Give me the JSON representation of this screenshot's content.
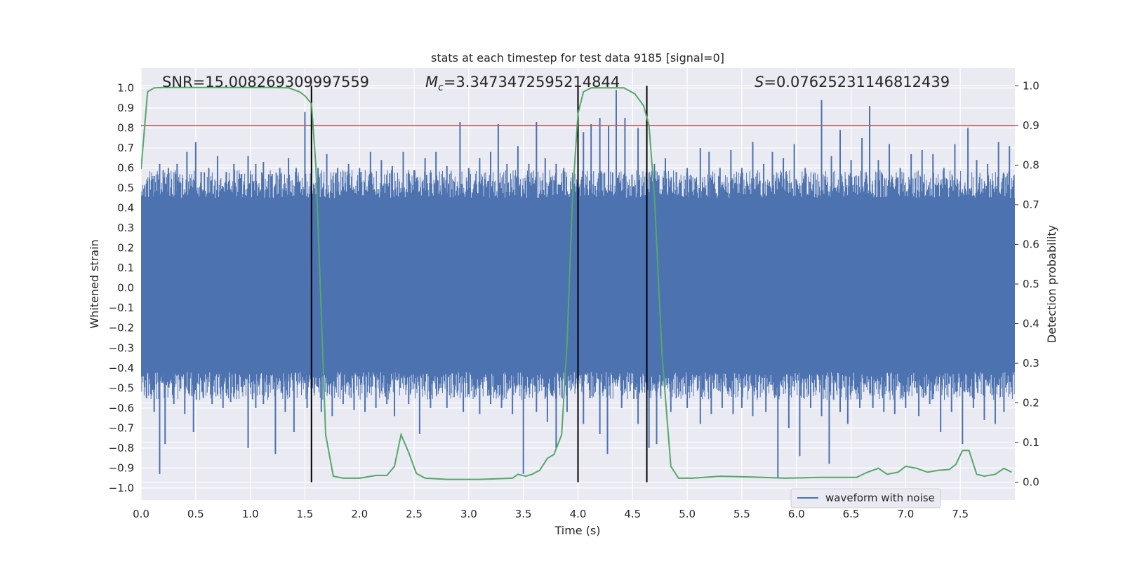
{
  "chart_data": {
    "type": "line",
    "title": "stats at each timestep for test data 9185 [signal=0]",
    "xlabel": "Time (s)",
    "ylabel": "Whitened strain",
    "y2label": "Detection probability",
    "xlim": [
      0.0,
      8.0
    ],
    "ylim": [
      -1.06,
      1.1
    ],
    "y2lim": [
      -0.045,
      1.045
    ],
    "x_ticks": [
      0.0,
      0.5,
      1.0,
      1.5,
      2.0,
      2.5,
      3.0,
      3.5,
      4.0,
      4.5,
      5.0,
      5.5,
      6.0,
      6.5,
      7.0,
      7.5
    ],
    "y_ticks": [
      1.0,
      0.9,
      0.8,
      0.7,
      0.6,
      0.5,
      0.4,
      0.3,
      0.2,
      0.1,
      0.0,
      -0.1,
      -0.2,
      -0.3,
      -0.4,
      -0.5,
      -0.6,
      -0.7,
      -0.8,
      -0.9,
      -1.0
    ],
    "y2_ticks": [
      1.0,
      0.9,
      0.8,
      0.7,
      0.6,
      0.5,
      0.4,
      0.3,
      0.2,
      0.1,
      0.0
    ],
    "grid": true,
    "legend_position": "lower-right",
    "annotations": {
      "snr": "SNR=15.008269309997559",
      "mc_symbol": "M",
      "mc_subscript": "c",
      "mc_value": "=3.3473472595214844",
      "s_symbol": "S",
      "s_value": "=0.07625231146812439"
    },
    "threshold": {
      "y2": 0.9,
      "color": "#c44e52"
    },
    "vertical_lines": [
      1.56,
      4.0,
      4.63
    ],
    "series": [
      {
        "name": "waveform with noise",
        "axis": "left",
        "color": "#4c72b0",
        "envelope_upper": 0.45,
        "envelope_lower": -0.42,
        "spikes_up": [
          [
            0.05,
            0.52
          ],
          [
            0.12,
            0.56
          ],
          [
            0.17,
            0.62
          ],
          [
            0.25,
            0.6
          ],
          [
            0.33,
            0.62
          ],
          [
            0.42,
            0.68
          ],
          [
            0.5,
            0.73
          ],
          [
            0.55,
            0.58
          ],
          [
            0.62,
            0.6
          ],
          [
            0.7,
            0.66
          ],
          [
            0.78,
            0.58
          ],
          [
            0.85,
            0.62
          ],
          [
            0.92,
            0.57
          ],
          [
            0.98,
            0.66
          ],
          [
            1.05,
            0.62
          ],
          [
            1.12,
            0.63
          ],
          [
            1.2,
            0.57
          ],
          [
            1.27,
            0.6
          ],
          [
            1.35,
            0.65
          ],
          [
            1.42,
            0.6
          ],
          [
            1.5,
            0.88
          ],
          [
            1.62,
            0.6
          ],
          [
            1.7,
            0.67
          ],
          [
            1.8,
            0.6
          ],
          [
            1.9,
            0.62
          ],
          [
            2.0,
            0.6
          ],
          [
            2.1,
            0.68
          ],
          [
            2.2,
            0.64
          ],
          [
            2.3,
            0.61
          ],
          [
            2.4,
            0.68
          ],
          [
            2.5,
            0.59
          ],
          [
            2.6,
            0.65
          ],
          [
            2.7,
            0.68
          ],
          [
            2.8,
            0.61
          ],
          [
            2.92,
            0.83
          ],
          [
            3.0,
            0.6
          ],
          [
            3.1,
            0.65
          ],
          [
            3.2,
            0.68
          ],
          [
            3.27,
            0.82
          ],
          [
            3.35,
            0.62
          ],
          [
            3.45,
            0.71
          ],
          [
            3.55,
            0.62
          ],
          [
            3.62,
            0.83
          ],
          [
            3.7,
            0.65
          ],
          [
            3.8,
            0.62
          ],
          [
            3.87,
            0.6
          ],
          [
            4.05,
            0.78
          ],
          [
            4.12,
            0.82
          ],
          [
            4.2,
            0.85
          ],
          [
            4.28,
            0.81
          ],
          [
            4.35,
            0.99
          ],
          [
            4.43,
            0.85
          ],
          [
            4.55,
            0.8
          ],
          [
            4.7,
            0.62
          ],
          [
            4.8,
            0.65
          ],
          [
            4.9,
            0.58
          ],
          [
            5.0,
            0.6
          ],
          [
            5.12,
            0.7
          ],
          [
            5.2,
            0.68
          ],
          [
            5.3,
            0.6
          ],
          [
            5.4,
            0.69
          ],
          [
            5.5,
            0.6
          ],
          [
            5.6,
            0.73
          ],
          [
            5.7,
            0.62
          ],
          [
            5.78,
            0.68
          ],
          [
            5.88,
            0.65
          ],
          [
            5.98,
            0.72
          ],
          [
            6.08,
            0.6
          ],
          [
            6.23,
            0.94
          ],
          [
            6.32,
            0.66
          ],
          [
            6.4,
            0.79
          ],
          [
            6.5,
            0.64
          ],
          [
            6.6,
            0.75
          ],
          [
            6.67,
            0.91
          ],
          [
            6.75,
            0.64
          ],
          [
            6.85,
            0.72
          ],
          [
            6.95,
            0.6
          ],
          [
            7.05,
            0.67
          ],
          [
            7.15,
            0.69
          ],
          [
            7.25,
            0.67
          ],
          [
            7.35,
            0.6
          ],
          [
            7.45,
            0.72
          ],
          [
            7.57,
            0.8
          ],
          [
            7.65,
            0.64
          ],
          [
            7.75,
            0.62
          ],
          [
            7.85,
            0.73
          ],
          [
            7.95,
            0.71
          ]
        ],
        "spikes_down": [
          [
            0.05,
            -0.55
          ],
          [
            0.12,
            -0.62
          ],
          [
            0.17,
            -0.93
          ],
          [
            0.22,
            -0.78
          ],
          [
            0.3,
            -0.58
          ],
          [
            0.4,
            -0.63
          ],
          [
            0.48,
            -0.72
          ],
          [
            0.57,
            -0.55
          ],
          [
            0.65,
            -0.58
          ],
          [
            0.75,
            -0.6
          ],
          [
            0.82,
            -0.57
          ],
          [
            0.98,
            -0.8
          ],
          [
            1.05,
            -0.6
          ],
          [
            1.12,
            -0.58
          ],
          [
            1.23,
            -0.83
          ],
          [
            1.32,
            -0.62
          ],
          [
            1.4,
            -0.72
          ],
          [
            1.52,
            -0.6
          ],
          [
            1.65,
            -0.62
          ],
          [
            1.75,
            -0.64
          ],
          [
            1.85,
            -0.58
          ],
          [
            1.95,
            -0.61
          ],
          [
            2.05,
            -0.62
          ],
          [
            2.15,
            -0.6
          ],
          [
            2.25,
            -0.58
          ],
          [
            2.32,
            -0.64
          ],
          [
            2.45,
            -0.58
          ],
          [
            2.55,
            -0.73
          ],
          [
            2.65,
            -0.6
          ],
          [
            2.8,
            -0.6
          ],
          [
            2.95,
            -0.62
          ],
          [
            3.1,
            -0.63
          ],
          [
            3.2,
            -0.58
          ],
          [
            3.3,
            -0.6
          ],
          [
            3.4,
            -0.63
          ],
          [
            3.5,
            -0.93
          ],
          [
            3.62,
            -0.62
          ],
          [
            3.72,
            -0.67
          ],
          [
            3.8,
            -0.8
          ],
          [
            3.9,
            -0.62
          ],
          [
            4.05,
            -0.68
          ],
          [
            4.2,
            -0.73
          ],
          [
            4.27,
            -0.83
          ],
          [
            4.4,
            -0.6
          ],
          [
            4.55,
            -0.68
          ],
          [
            4.65,
            -0.8
          ],
          [
            4.72,
            -0.78
          ],
          [
            4.85,
            -0.62
          ],
          [
            5.0,
            -0.6
          ],
          [
            5.12,
            -0.68
          ],
          [
            5.22,
            -0.63
          ],
          [
            5.32,
            -0.6
          ],
          [
            5.42,
            -0.63
          ],
          [
            5.5,
            -0.6
          ],
          [
            5.6,
            -0.64
          ],
          [
            5.72,
            -0.62
          ],
          [
            5.83,
            -0.95
          ],
          [
            5.93,
            -0.7
          ],
          [
            6.03,
            -0.84
          ],
          [
            6.13,
            -0.6
          ],
          [
            6.23,
            -0.64
          ],
          [
            6.3,
            -0.88
          ],
          [
            6.4,
            -0.62
          ],
          [
            6.47,
            -0.68
          ],
          [
            6.58,
            -0.6
          ],
          [
            6.7,
            -0.6
          ],
          [
            6.8,
            -0.62
          ],
          [
            6.9,
            -0.63
          ],
          [
            7.0,
            -0.6
          ],
          [
            7.12,
            -0.64
          ],
          [
            7.22,
            -0.58
          ],
          [
            7.32,
            -0.72
          ],
          [
            7.42,
            -0.62
          ],
          [
            7.52,
            -0.78
          ],
          [
            7.62,
            -0.6
          ],
          [
            7.72,
            -0.66
          ],
          [
            7.82,
            -0.68
          ],
          [
            7.9,
            -0.62
          ]
        ]
      },
      {
        "axis": "right",
        "color": "#55a868",
        "points": [
          [
            0.0,
            0.79
          ],
          [
            0.06,
            0.985
          ],
          [
            0.12,
            0.995
          ],
          [
            0.2,
            0.996
          ],
          [
            0.4,
            0.996
          ],
          [
            0.8,
            0.996
          ],
          [
            1.2,
            0.996
          ],
          [
            1.35,
            0.995
          ],
          [
            1.45,
            0.985
          ],
          [
            1.5,
            0.975
          ],
          [
            1.56,
            0.955
          ],
          [
            1.6,
            0.8
          ],
          [
            1.64,
            0.5
          ],
          [
            1.69,
            0.12
          ],
          [
            1.76,
            0.015
          ],
          [
            1.85,
            0.01
          ],
          [
            2.0,
            0.01
          ],
          [
            2.15,
            0.017
          ],
          [
            2.25,
            0.017
          ],
          [
            2.32,
            0.04
          ],
          [
            2.38,
            0.12
          ],
          [
            2.45,
            0.075
          ],
          [
            2.52,
            0.022
          ],
          [
            2.6,
            0.01
          ],
          [
            2.8,
            0.007
          ],
          [
            3.1,
            0.007
          ],
          [
            3.4,
            0.01
          ],
          [
            3.45,
            0.02
          ],
          [
            3.52,
            0.015
          ],
          [
            3.58,
            0.02
          ],
          [
            3.65,
            0.03
          ],
          [
            3.72,
            0.06
          ],
          [
            3.78,
            0.07
          ],
          [
            3.85,
            0.12
          ],
          [
            3.9,
            0.35
          ],
          [
            3.95,
            0.72
          ],
          [
            4.0,
            0.93
          ],
          [
            4.05,
            0.985
          ],
          [
            4.12,
            0.995
          ],
          [
            4.25,
            0.995
          ],
          [
            4.42,
            0.995
          ],
          [
            4.52,
            0.98
          ],
          [
            4.6,
            0.95
          ],
          [
            4.65,
            0.9
          ],
          [
            4.7,
            0.72
          ],
          [
            4.77,
            0.32
          ],
          [
            4.85,
            0.04
          ],
          [
            4.92,
            0.01
          ],
          [
            5.05,
            0.01
          ],
          [
            5.3,
            0.015
          ],
          [
            5.6,
            0.013
          ],
          [
            5.9,
            0.01
          ],
          [
            6.2,
            0.012
          ],
          [
            6.55,
            0.012
          ],
          [
            6.65,
            0.025
          ],
          [
            6.75,
            0.035
          ],
          [
            6.83,
            0.02
          ],
          [
            6.93,
            0.025
          ],
          [
            7.0,
            0.04
          ],
          [
            7.1,
            0.035
          ],
          [
            7.2,
            0.025
          ],
          [
            7.3,
            0.03
          ],
          [
            7.4,
            0.032
          ],
          [
            7.46,
            0.045
          ],
          [
            7.52,
            0.08
          ],
          [
            7.58,
            0.08
          ],
          [
            7.65,
            0.02
          ],
          [
            7.72,
            0.015
          ],
          [
            7.82,
            0.02
          ],
          [
            7.9,
            0.035
          ],
          [
            7.97,
            0.025
          ]
        ]
      },
      {
        "axis": "right",
        "role": "threshold-line",
        "color": "#c44e52"
      }
    ]
  }
}
